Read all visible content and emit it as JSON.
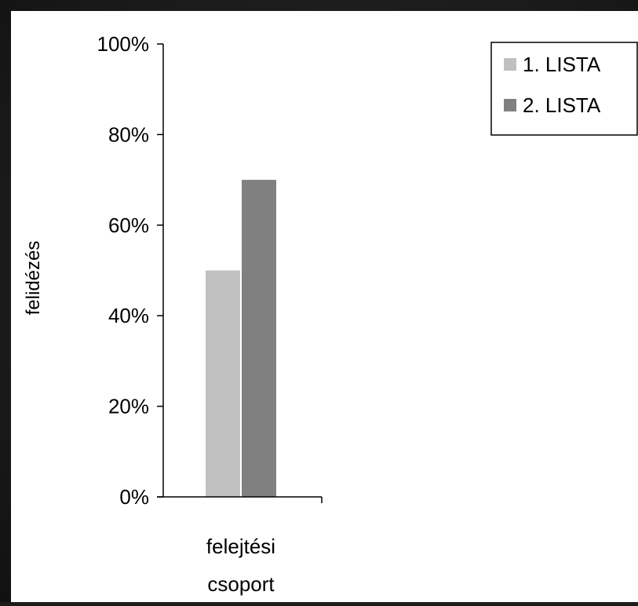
{
  "chart_data": {
    "type": "bar",
    "categories": [
      "felejtési csoport"
    ],
    "category_label_lines": [
      "felejtési",
      "csoport"
    ],
    "series": [
      {
        "name": "1. LISTA",
        "values": [
          50
        ],
        "color": "#c0c0c0"
      },
      {
        "name": "2. LISTA",
        "values": [
          70
        ],
        "color": "#808080"
      }
    ],
    "title": "",
    "xlabel": "",
    "ylabel": "felidézés",
    "ylim": [
      0,
      100
    ],
    "yticks": [
      0,
      20,
      40,
      60,
      80,
      100
    ],
    "ytick_labels": [
      "0%",
      "20%",
      "40%",
      "60%",
      "80%",
      "100%"
    ],
    "grid": false,
    "legend_position": "top-right"
  }
}
